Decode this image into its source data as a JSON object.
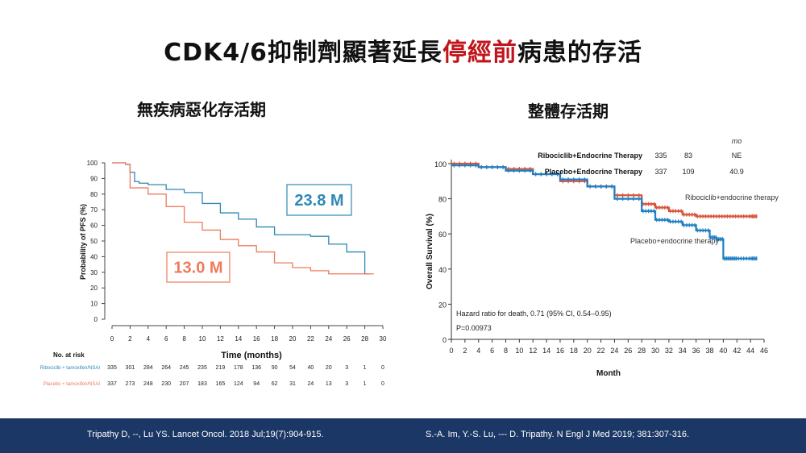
{
  "title": {
    "before": "CDK4/6抑制劑顯著延長",
    "highlight": "停經前",
    "after": "病患的存活"
  },
  "colors": {
    "ribo": "#2e88b4",
    "placebo": "#ee7b5b",
    "os_ribo": "#d8553a",
    "os_placebo": "#1e7fc3",
    "highlight": "#c0151b",
    "footer": "#1b3765"
  },
  "footer": {
    "ref_left": "Tripathy D, --, Lu YS. Lancet Oncol. 2018 Jul;19(7):904-915.",
    "ref_right": "S.-A. Im, Y.-S. Lu, --- D. Tripathy. N Engl J Med 2019; 381:307-316."
  },
  "chart_data": [
    {
      "type": "line",
      "title": "無疾病惡化存活期",
      "xlabel": "Time (months)",
      "ylabel": "Probability of PFS (%)",
      "xlim": [
        0,
        30
      ],
      "ylim": [
        0,
        100
      ],
      "xticks": [
        0,
        2,
        4,
        6,
        8,
        10,
        12,
        14,
        16,
        18,
        20,
        22,
        24,
        26,
        28,
        30
      ],
      "yticks": [
        0,
        10,
        20,
        30,
        40,
        50,
        60,
        70,
        80,
        90,
        100
      ],
      "series": [
        {
          "name": "Ribociclib + tamoxifen/NSAI",
          "x": [
            0,
            1.5,
            2,
            2.5,
            3,
            4,
            6,
            8,
            10,
            12,
            14,
            16,
            18,
            20,
            22,
            24,
            26,
            28,
            28.5
          ],
          "y": [
            100,
            99,
            94,
            88,
            87,
            86,
            83,
            81,
            74,
            68,
            64,
            59,
            54,
            54,
            53,
            48,
            43,
            29,
            29
          ]
        },
        {
          "name": "Placebo + tamoxifen/NSAI",
          "x": [
            0,
            1.5,
            2,
            4,
            6,
            8,
            10,
            12,
            14,
            16,
            18,
            20,
            22,
            24,
            26,
            28,
            29
          ],
          "y": [
            100,
            99,
            84,
            80,
            72,
            62,
            57,
            51,
            47,
            43,
            36,
            33,
            31,
            29,
            29,
            29,
            29
          ]
        }
      ],
      "annotations": [
        {
          "text": "23.8 M",
          "series": "ribo"
        },
        {
          "text": "13.0 M",
          "series": "placebo"
        }
      ],
      "at_risk": {
        "label": "No. at risk",
        "rows": [
          {
            "name": "Ribociclib + tamoxifen/NSAI",
            "values": [
              "335",
              "301",
              "284",
              "264",
              "245",
              "235",
              "219",
              "178",
              "136",
              "90",
              "54",
              "40",
              "20",
              "3",
              "1",
              "0"
            ]
          },
          {
            "name": "Placebo + tamoxifen/NSAI",
            "values": [
              "337",
              "273",
              "248",
              "230",
              "207",
              "183",
              "165",
              "124",
              "94",
              "62",
              "31",
              "24",
              "13",
              "3",
              "1",
              "0"
            ]
          }
        ]
      }
    },
    {
      "type": "line",
      "title": "整體存活期",
      "xlabel": "Month",
      "ylabel": "Overall Survival (%)",
      "xlim": [
        0,
        46
      ],
      "ylim": [
        0,
        100
      ],
      "xticks": [
        0,
        2,
        4,
        6,
        8,
        10,
        12,
        14,
        16,
        18,
        20,
        22,
        24,
        26,
        28,
        30,
        32,
        34,
        36,
        38,
        40,
        42,
        44,
        46
      ],
      "yticks": [
        0,
        20,
        40,
        60,
        80,
        100
      ],
      "series": [
        {
          "name": "Ribociclib+endocrine therapy",
          "x": [
            0,
            4,
            8,
            12,
            16,
            20,
            24,
            28,
            30,
            32,
            34,
            36,
            38,
            40,
            42,
            44,
            45
          ],
          "y": [
            100,
            98,
            97,
            94,
            90,
            87,
            82,
            77,
            75,
            73,
            71,
            70,
            70,
            70,
            70,
            70,
            70
          ]
        },
        {
          "name": "Placebo+endocrine therapy",
          "x": [
            0,
            4,
            8,
            12,
            16,
            20,
            24,
            28,
            30,
            32,
            34,
            36,
            38,
            39,
            40,
            41,
            42,
            44,
            45
          ],
          "y": [
            99,
            98,
            96,
            94,
            91,
            87,
            80,
            73,
            68,
            67,
            65,
            62,
            58,
            57,
            46,
            46,
            46,
            46,
            46
          ]
        }
      ],
      "legend_table": {
        "header": "mo",
        "rows": [
          {
            "name": "Ribociclib+Endocrine Therapy",
            "n": "335",
            "events": "83",
            "median": "NE"
          },
          {
            "name": "Placebo+Endocrine Therapy",
            "n": "337",
            "events": "109",
            "median": "40.9"
          }
        ]
      },
      "curve_labels": [
        "Ribociclib+endocrine therapy",
        "Placebo+endocrine therapy"
      ],
      "stats": [
        "Hazard ratio for death, 0.71 (95% CI, 0.54–0.95)",
        "P=0.00973"
      ]
    }
  ]
}
